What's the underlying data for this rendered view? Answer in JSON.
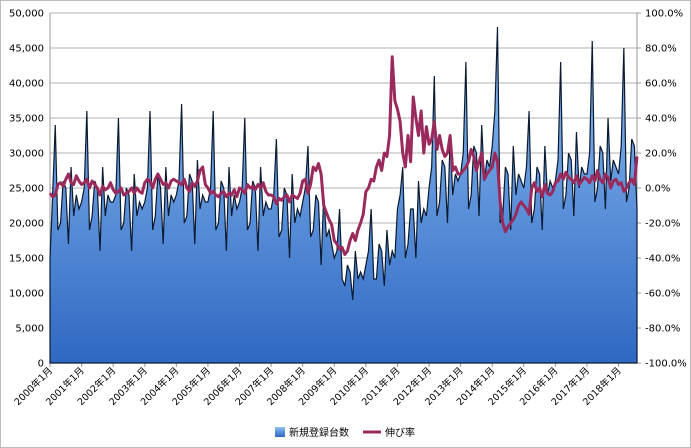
{
  "chart_data": {
    "type": "area",
    "categories": [
      "2000年1月",
      null,
      null,
      null,
      null,
      null,
      null,
      null,
      null,
      null,
      null,
      null,
      "2001年1月",
      null,
      null,
      null,
      null,
      null,
      null,
      null,
      null,
      null,
      null,
      null,
      "2002年1月",
      null,
      null,
      null,
      null,
      null,
      null,
      null,
      null,
      null,
      null,
      null,
      "2003年1月",
      null,
      null,
      null,
      null,
      null,
      null,
      null,
      null,
      null,
      null,
      null,
      "2004年1月",
      null,
      null,
      null,
      null,
      null,
      null,
      null,
      null,
      null,
      null,
      null,
      "2005年1月",
      null,
      null,
      null,
      null,
      null,
      null,
      null,
      null,
      null,
      null,
      null,
      "2006年1月",
      null,
      null,
      null,
      null,
      null,
      null,
      null,
      null,
      null,
      null,
      null,
      "2007年1月",
      null,
      null,
      null,
      null,
      null,
      null,
      null,
      null,
      null,
      null,
      null,
      "2008年1月",
      null,
      null,
      null,
      null,
      null,
      null,
      null,
      null,
      null,
      null,
      null,
      "2009年1月",
      null,
      null,
      null,
      null,
      null,
      null,
      null,
      null,
      null,
      null,
      null,
      "2010年1月",
      null,
      null,
      null,
      null,
      null,
      null,
      null,
      null,
      null,
      null,
      null,
      "2011年1月",
      null,
      null,
      null,
      null,
      null,
      null,
      null,
      null,
      null,
      null,
      null,
      "2012年1月",
      null,
      null,
      null,
      null,
      null,
      null,
      null,
      null,
      null,
      null,
      null,
      "2013年1月",
      null,
      null,
      null,
      null,
      null,
      null,
      null,
      null,
      null,
      null,
      null,
      "2014年1月",
      null,
      null,
      null,
      null,
      null,
      null,
      null,
      null,
      null,
      null,
      null,
      "2015年1月",
      null,
      null,
      null,
      null,
      null,
      null,
      null,
      null,
      null,
      null,
      null,
      "2016年1月",
      null,
      null,
      null,
      null,
      null,
      null,
      null,
      null,
      null,
      null,
      null,
      "2017年1月",
      null,
      null,
      null,
      null,
      null,
      null,
      null,
      null,
      null,
      null,
      null,
      "2018年1月",
      null,
      null,
      null,
      null,
      null,
      null,
      null
    ],
    "series": [
      {
        "name": "新規登録台数",
        "color": "#3f7fd6",
        "values": [
          15000,
          24000,
          34000,
          19000,
          20000,
          26000,
          25000,
          17000,
          28000,
          21000,
          24000,
          22000,
          23000,
          25000,
          36000,
          19000,
          21000,
          26000,
          25000,
          16000,
          28000,
          21000,
          24000,
          23000,
          23000,
          24000,
          35000,
          19000,
          20000,
          25000,
          24000,
          16000,
          27000,
          21000,
          23000,
          22000,
          23000,
          25000,
          36000,
          19000,
          21000,
          27000,
          25000,
          17000,
          28000,
          21000,
          24000,
          23000,
          24000,
          26000,
          37000,
          20000,
          21000,
          27000,
          26000,
          17000,
          29000,
          22000,
          24000,
          23000,
          23000,
          25000,
          36000,
          19000,
          20000,
          26000,
          25000,
          16000,
          28000,
          21000,
          24000,
          22000,
          23000,
          25000,
          35000,
          19000,
          20000,
          26000,
          25000,
          16000,
          28000,
          21000,
          23000,
          22000,
          22000,
          24000,
          32000,
          18000,
          19000,
          25000,
          24000,
          15000,
          27000,
          20000,
          22000,
          21000,
          23000,
          25000,
          31000,
          18000,
          19000,
          24000,
          23000,
          14000,
          24000,
          18000,
          19000,
          17000,
          15000,
          16000,
          22000,
          12000,
          11000,
          14000,
          13000,
          9000,
          16000,
          12000,
          13000,
          12000,
          14000,
          16000,
          22000,
          12000,
          12000,
          17000,
          16000,
          11000,
          19000,
          14000,
          16000,
          15000,
          22000,
          24000,
          28000,
          15000,
          17000,
          22000,
          22000,
          15000,
          26000,
          20000,
          22000,
          21000,
          25000,
          28000,
          41000,
          21000,
          23000,
          29000,
          28000,
          20000,
          32000,
          24000,
          27000,
          26000,
          27000,
          30000,
          43000,
          22000,
          24000,
          31000,
          30000,
          21000,
          34000,
          26000,
          29000,
          28000,
          31000,
          36000,
          48000,
          20000,
          21000,
          28000,
          27000,
          19000,
          31000,
          24000,
          27000,
          26000,
          25000,
          28000,
          36000,
          20000,
          22000,
          28000,
          27000,
          19000,
          31000,
          24000,
          26000,
          25000,
          26000,
          29000,
          43000,
          22000,
          24000,
          30000,
          29000,
          21000,
          33000,
          25000,
          28000,
          27000,
          27000,
          30000,
          46000,
          23000,
          25000,
          31000,
          30000,
          22000,
          35000,
          26000,
          29000,
          28000,
          27000,
          31000,
          45000,
          23000,
          25000,
          32000,
          31000,
          22000
        ]
      },
      {
        "name": "伸び率",
        "color": "#9b2a5c",
        "type": "line",
        "axis": "y2",
        "values": [
          -3,
          -5,
          -4,
          2,
          3,
          1,
          5,
          8,
          3,
          2,
          7,
          4,
          2,
          3,
          5,
          0,
          4,
          2,
          0,
          -4,
          1,
          -1,
          0,
          3,
          -1,
          -3,
          -2,
          0,
          -4,
          -3,
          -2,
          0,
          -3,
          0,
          -2,
          -3,
          3,
          5,
          4,
          0,
          5,
          8,
          5,
          2,
          3,
          0,
          4,
          5,
          4,
          3,
          2,
          5,
          0,
          -2,
          3,
          1,
          4,
          10,
          12,
          2,
          0,
          -3,
          -2,
          -4,
          -5,
          -3,
          -2,
          -5,
          -3,
          -4,
          -1,
          -5,
          0,
          -1,
          -3,
          2,
          0,
          1,
          -1,
          2,
          0,
          3,
          -2,
          -4,
          -4,
          -5,
          -9,
          -6,
          -7,
          -5,
          -4,
          -8,
          -4,
          -5,
          -6,
          -3,
          4,
          5,
          -3,
          2,
          12,
          10,
          14,
          8,
          -10,
          -14,
          -18,
          -21,
          -30,
          -32,
          -35,
          -34,
          -38,
          -36,
          -30,
          -26,
          -30,
          -24,
          -20,
          -15,
          -2,
          0,
          5,
          4,
          12,
          16,
          10,
          20,
          18,
          30,
          75,
          50,
          45,
          38,
          20,
          12,
          30,
          15,
          52,
          40,
          30,
          44,
          20,
          35,
          25,
          28,
          38,
          22,
          30,
          22,
          18,
          20,
          30,
          10,
          12,
          8,
          8,
          10,
          12,
          15,
          22,
          18,
          10,
          15,
          20,
          5,
          8,
          10,
          12,
          20,
          15,
          -8,
          -20,
          -25,
          -22,
          -20,
          -18,
          -15,
          -10,
          -8,
          -10,
          -12,
          -15,
          0,
          3,
          -2,
          0,
          -5,
          2,
          -3,
          -4,
          -2,
          3,
          4,
          8,
          5,
          9,
          6,
          5,
          3,
          7,
          2,
          4,
          6,
          5,
          3,
          7,
          4,
          10,
          5,
          3,
          8,
          6,
          0,
          4,
          5,
          2,
          3,
          -2,
          0,
          3,
          5,
          2,
          18
        ]
      }
    ],
    "ylim": [
      0,
      50000
    ],
    "yticks": [
      0,
      {
        "value": 5000,
        "label": "5,000"
      },
      {
        "value": 10000,
        "label": "10,000"
      },
      {
        "value": 15000,
        "label": "15,000"
      },
      {
        "value": 20000,
        "label": "20,000"
      },
      {
        "value": 25000,
        "label": "25,000"
      },
      {
        "value": 30000,
        "label": "30,000"
      },
      {
        "value": 35000,
        "label": "35,000"
      },
      {
        "value": 40000,
        "label": "40,000"
      },
      {
        "value": 45000,
        "label": "45,000"
      },
      {
        "value": 50000,
        "label": "50,000"
      }
    ],
    "y2lim": [
      -100,
      100
    ],
    "y2ticks": [
      {
        "value": -100,
        "label": "-100.0%"
      },
      {
        "value": -80,
        "label": "-80.0%"
      },
      {
        "value": -60,
        "label": "-60.0%"
      },
      {
        "value": -40,
        "label": "-40.0%"
      },
      {
        "value": -20,
        "label": "-20.0%"
      },
      {
        "value": 0,
        "label": "0.0%"
      },
      {
        "value": 20,
        "label": "20.0%"
      },
      {
        "value": 40,
        "label": "40.0%"
      },
      {
        "value": 60,
        "label": "60.0%"
      },
      {
        "value": 80,
        "label": "80.0%"
      },
      {
        "value": 100,
        "label": "100.0%"
      }
    ],
    "grid": true,
    "legend": "bottom"
  }
}
